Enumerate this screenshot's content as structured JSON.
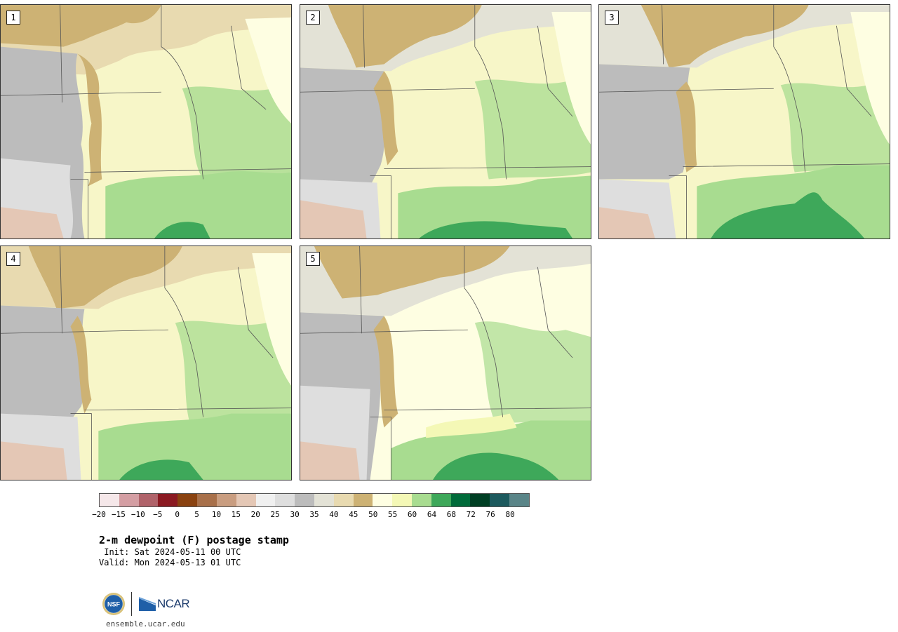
{
  "panels": [
    {
      "label": "1"
    },
    {
      "label": "2"
    },
    {
      "label": "3"
    },
    {
      "label": "4"
    },
    {
      "label": "5"
    }
  ],
  "colorbar": {
    "colors": [
      "#f5e7e9",
      "#d49ea3",
      "#b0636a",
      "#8b1a22",
      "#8a4210",
      "#a8704a",
      "#c99d80",
      "#e4c7b5",
      "#f0f0f0",
      "#dedede",
      "#bcbcbc",
      "#e3e2d6",
      "#e8dab0",
      "#cdb274",
      "#fefee2",
      "#f4f8b6",
      "#a8dc90",
      "#3ea85a",
      "#006b3a",
      "#003f24",
      "#1d5a5e",
      "#5a8588"
    ],
    "tick_labels": [
      "−20",
      "−15",
      "−10",
      "−5",
      "0",
      "5",
      "10",
      "15",
      "20",
      "25",
      "30",
      "35",
      "40",
      "45",
      "50",
      "55",
      "60",
      "64",
      "68",
      "72",
      "76",
      "80"
    ]
  },
  "title": "2-m dewpoint (F) postage stamp",
  "init_line": " Init: Sat 2024-05-11 00 UTC",
  "valid_line": "Valid: Mon 2024-05-13 01 UTC",
  "logos": {
    "nsf": "NSF",
    "ncar": "NCAR"
  },
  "site": "ensemble.ucar.edu"
}
